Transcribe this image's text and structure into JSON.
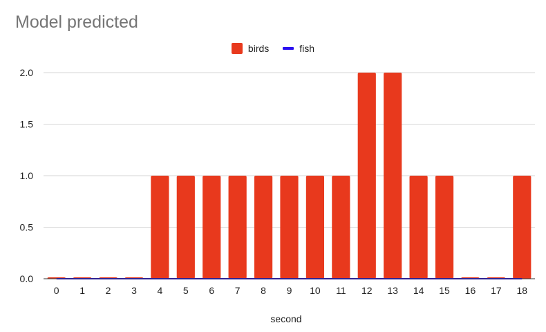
{
  "chart_data": {
    "type": "bar",
    "title": "Model predicted",
    "xlabel": "second",
    "ylabel": "",
    "ylim": [
      0,
      2
    ],
    "yticks": [
      "0.0",
      "0.5",
      "1.0",
      "1.5",
      "2.0"
    ],
    "categories": [
      "0",
      "1",
      "2",
      "3",
      "4",
      "5",
      "6",
      "7",
      "8",
      "9",
      "10",
      "11",
      "12",
      "13",
      "14",
      "15",
      "16",
      "17",
      "18"
    ],
    "legend_position": "top-center",
    "grid": true,
    "series": [
      {
        "name": "birds",
        "kind": "bar",
        "color": "#e8391d",
        "values": [
          0,
          0,
          0,
          0,
          1,
          1,
          1,
          1,
          1,
          1,
          1,
          1,
          2,
          2,
          1,
          1,
          0,
          0,
          1
        ]
      },
      {
        "name": "fish",
        "kind": "line",
        "color": "#2a0ff0",
        "values": [
          0,
          0,
          0,
          0,
          0,
          0,
          0,
          0,
          0,
          0,
          0,
          0,
          0,
          0,
          0,
          0,
          0,
          0,
          0
        ]
      }
    ]
  }
}
